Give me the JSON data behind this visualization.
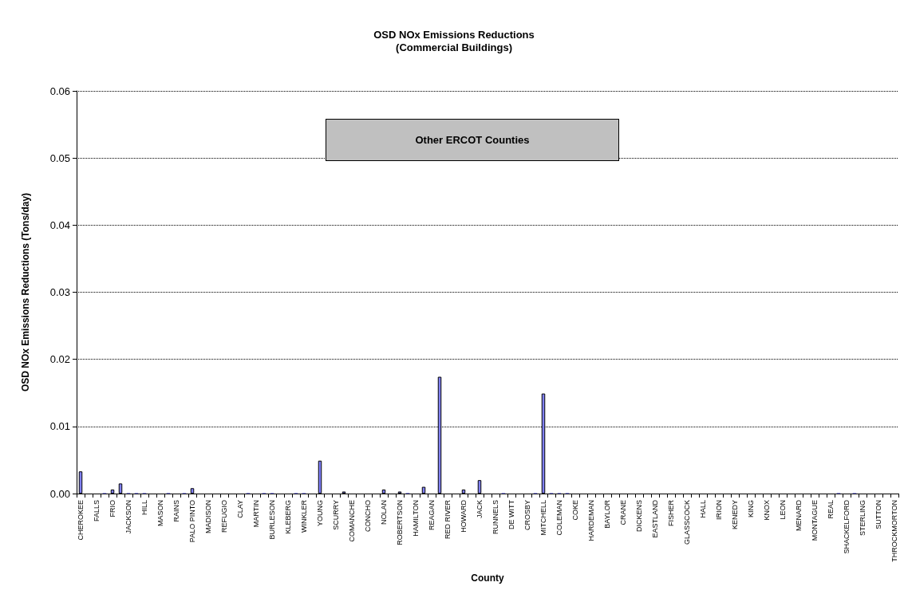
{
  "chart_data": {
    "type": "bar",
    "title": "OSD NOx Emissions Reductions\n(Commercial Buildings)",
    "xlabel": "County",
    "ylabel": "OSD NOx Emissions Reductions (Tons/day)",
    "annotations": [
      "Other ERCOT Counties"
    ],
    "categories": [
      "CHEROKEE",
      null,
      "FALLS",
      null,
      "FRIO",
      null,
      "JACKSON",
      null,
      "HILL",
      null,
      "MASON",
      null,
      "RAINS",
      null,
      "PALO PINTO",
      null,
      "MADISON",
      null,
      "REFUGIO",
      null,
      "CLAY",
      null,
      "MARTIN",
      null,
      "BURLESON",
      null,
      "KLEBERG",
      null,
      "WINKLER",
      null,
      "YOUNG",
      null,
      "SCURRY",
      null,
      "COMANCHE",
      null,
      "CONCHO",
      null,
      "NOLAN",
      null,
      "ROBERTSON",
      null,
      "HAMILTON",
      null,
      "REAGAN",
      null,
      "RED RIVER",
      null,
      "HOWARD",
      null,
      "JACK",
      null,
      "RUNNELS",
      null,
      "DE WITT",
      null,
      "CROSBY",
      null,
      "MITCHELL",
      null,
      "COLEMAN",
      null,
      "COKE",
      null,
      "HARDEMAN",
      null,
      "BAYLOR",
      null,
      "CRANE",
      null,
      "DICKENS",
      null,
      "EASTLAND",
      null,
      "FISHER",
      null,
      "GLASSCOCK",
      null,
      "HALL",
      null,
      "IRION",
      null,
      "KENEDY",
      null,
      "KING",
      null,
      "KNOX",
      null,
      "LEON",
      null,
      "MENARD",
      null,
      "MONTAGUE",
      null,
      "REAL",
      null,
      "SHACKELFORD",
      null,
      "STERLING",
      null,
      "SUTTON",
      null,
      "THROCKMORTON"
    ],
    "values": [
      0.0033,
      0,
      0,
      0.0001,
      0.0006,
      0.0015,
      0.0001,
      0.0001,
      0.0001,
      0,
      0,
      0.0001,
      0,
      0.0001,
      0.0008,
      0,
      0,
      0,
      0,
      0,
      0,
      0.0001,
      0,
      0.0001,
      0.0001,
      0,
      0,
      0.0001,
      0.0001,
      0,
      0.0049,
      0,
      0,
      0.0003,
      0,
      0,
      0,
      0,
      0.0006,
      0,
      0.0003,
      0.0001,
      0,
      0.001,
      0,
      0.0174,
      0,
      0,
      0.0006,
      0,
      0.002,
      0,
      0,
      0.0001,
      0,
      0,
      0,
      0.0001,
      0.0149,
      0.0001,
      0.0001,
      0.0001,
      0,
      0,
      0,
      0,
      0,
      0,
      0,
      0,
      0,
      0,
      0,
      0,
      0,
      0,
      0,
      0,
      0,
      0,
      0,
      0,
      0,
      0,
      0,
      0,
      0,
      0,
      0,
      0,
      0,
      0,
      0,
      0,
      0,
      0.0001,
      0,
      0.0001,
      0,
      0,
      0,
      0,
      0
    ],
    "color": "#8080ff",
    "ylim": [
      0,
      0.06
    ],
    "yticks": [
      {
        "value": 0,
        "label": "0.00"
      },
      {
        "value": 0.01,
        "label": "0.01"
      },
      {
        "value": 0.02,
        "label": "0.02"
      },
      {
        "value": 0.03,
        "label": "0.03"
      },
      {
        "value": 0.04,
        "label": "0.04"
      },
      {
        "value": 0.05,
        "label": "0.05"
      },
      {
        "value": 0.06,
        "label": "0.06"
      }
    ],
    "grid": "y"
  }
}
